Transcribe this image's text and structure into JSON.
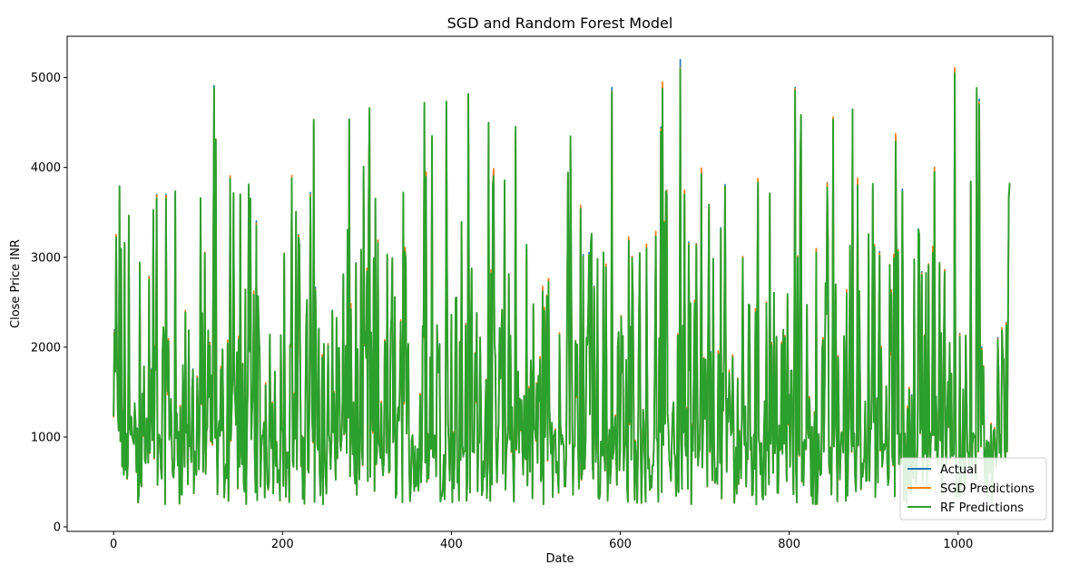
{
  "chart_data": {
    "type": "line",
    "title": "SGD and Random Forest Model",
    "xlabel": "Date",
    "ylabel": "Close Price INR",
    "xlim": [
      -55,
      1112
    ],
    "ylim": [
      -50,
      5460
    ],
    "xticks": [
      0,
      200,
      400,
      600,
      800,
      1000
    ],
    "yticks": [
      0,
      1000,
      2000,
      3000,
      4000,
      5000
    ],
    "grid": false,
    "legend_position": "lower-right",
    "series": [
      {
        "name": "Actual",
        "color": "#1f77b4"
      },
      {
        "name": "SGD Predictions",
        "color": "#ff7f0e"
      },
      {
        "name": "RF Predictions",
        "color": "#2ca02c"
      }
    ],
    "n_points": 1062,
    "value_range": [
      230,
      5200
    ],
    "anchor_points": [
      [
        3,
        3250
      ],
      [
        7,
        3750
      ],
      [
        31,
        2910
      ],
      [
        51,
        3700
      ],
      [
        62,
        3700
      ],
      [
        103,
        3650
      ],
      [
        119,
        4910
      ],
      [
        121,
        4290
      ],
      [
        138,
        3890
      ],
      [
        142,
        3690
      ],
      [
        211,
        3880
      ],
      [
        233,
        3720
      ],
      [
        237,
        4490
      ],
      [
        279,
        4540
      ],
      [
        303,
        4650
      ],
      [
        333,
        2540
      ],
      [
        368,
        4670
      ],
      [
        370,
        3940
      ],
      [
        377,
        4310
      ],
      [
        394,
        4690
      ],
      [
        420,
        4810
      ],
      [
        444,
        4500
      ],
      [
        476,
        4400
      ],
      [
        541,
        4290
      ],
      [
        565,
        3160
      ],
      [
        590,
        4890
      ],
      [
        648,
        4450
      ],
      [
        650,
        4900
      ],
      [
        671,
        5200
      ],
      [
        676,
        3740
      ],
      [
        696,
        3970
      ],
      [
        777,
        3700
      ],
      [
        807,
        4890
      ],
      [
        814,
        4570
      ],
      [
        852,
        4540
      ],
      [
        875,
        4640
      ],
      [
        881,
        3860
      ],
      [
        926,
        4340
      ],
      [
        972,
        4000
      ],
      [
        996,
        5100
      ],
      [
        1022,
        4820
      ],
      [
        1025,
        4760
      ],
      [
        1060,
        3700
      ]
    ],
    "legend_entries": [
      "Actual",
      "SGD Predictions",
      "RF Predictions"
    ]
  }
}
